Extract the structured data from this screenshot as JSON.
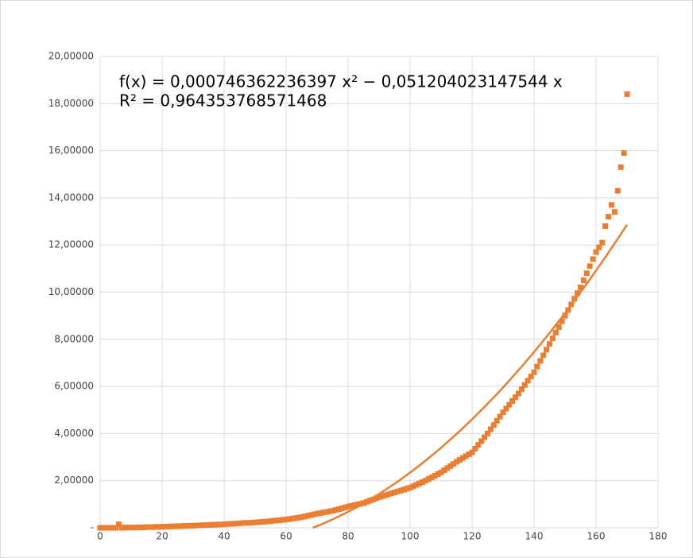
{
  "chart_data": {
    "type": "scatter",
    "x": [
      0,
      1,
      2,
      3,
      4,
      5,
      6,
      7,
      8,
      9,
      10,
      11,
      12,
      13,
      14,
      15,
      16,
      17,
      18,
      19,
      20,
      21,
      22,
      23,
      24,
      25,
      26,
      27,
      28,
      29,
      30,
      31,
      32,
      33,
      34,
      35,
      36,
      37,
      38,
      39,
      40,
      41,
      42,
      43,
      44,
      45,
      46,
      47,
      48,
      49,
      50,
      51,
      52,
      53,
      54,
      55,
      56,
      57,
      58,
      59,
      60,
      61,
      62,
      63,
      64,
      65,
      66,
      67,
      68,
      69,
      70,
      71,
      72,
      73,
      74,
      75,
      76,
      77,
      78,
      79,
      80,
      81,
      82,
      83,
      84,
      85,
      86,
      87,
      88,
      89,
      90,
      91,
      92,
      93,
      94,
      95,
      96,
      97,
      98,
      99,
      100,
      101,
      102,
      103,
      104,
      105,
      106,
      107,
      108,
      109,
      110,
      111,
      112,
      113,
      114,
      115,
      116,
      117,
      118,
      119,
      120,
      121,
      122,
      123,
      124,
      125,
      126,
      127,
      128,
      129,
      130,
      131,
      132,
      133,
      134,
      135,
      136,
      137,
      138,
      139,
      140,
      141,
      142,
      143,
      144,
      145,
      146,
      147,
      148,
      149,
      150,
      151,
      152,
      153,
      154,
      155,
      156,
      157,
      158,
      159,
      160,
      161,
      162,
      163,
      164,
      165,
      166,
      167,
      168,
      169,
      170
    ],
    "values": [
      0,
      0,
      0,
      0,
      0,
      0,
      0.15,
      0,
      0.01,
      0.01,
      0.01,
      0.01,
      0.02,
      0.02,
      0.02,
      0.03,
      0.03,
      0.03,
      0.04,
      0.04,
      0.04,
      0.05,
      0.05,
      0.06,
      0.06,
      0.07,
      0.07,
      0.08,
      0.08,
      0.09,
      0.09,
      0.1,
      0.1,
      0.11,
      0.11,
      0.12,
      0.13,
      0.13,
      0.14,
      0.14,
      0.15,
      0.16,
      0.17,
      0.17,
      0.18,
      0.19,
      0.2,
      0.21,
      0.21,
      0.22,
      0.23,
      0.24,
      0.25,
      0.26,
      0.27,
      0.28,
      0.3,
      0.31,
      0.32,
      0.34,
      0.35,
      0.37,
      0.39,
      0.41,
      0.43,
      0.45,
      0.48,
      0.51,
      0.54,
      0.57,
      0.6,
      0.62,
      0.65,
      0.67,
      0.7,
      0.72,
      0.76,
      0.79,
      0.83,
      0.86,
      0.9,
      0.93,
      0.96,
      0.99,
      1.02,
      1.05,
      1.1,
      1.15,
      1.2,
      1.25,
      1.3,
      1.34,
      1.38,
      1.42,
      1.46,
      1.5,
      1.54,
      1.58,
      1.62,
      1.66,
      1.7,
      1.76,
      1.82,
      1.88,
      1.94,
      2.0,
      2.07,
      2.14,
      2.21,
      2.28,
      2.35,
      2.44,
      2.53,
      2.62,
      2.71,
      2.8,
      2.88,
      2.96,
      3.04,
      3.12,
      3.2,
      3.36,
      3.52,
      3.68,
      3.84,
      4.0,
      4.18,
      4.36,
      4.54,
      4.72,
      4.9,
      5.06,
      5.22,
      5.38,
      5.54,
      5.7,
      5.88,
      6.06,
      6.24,
      6.42,
      6.6,
      6.84,
      7.08,
      7.32,
      7.56,
      7.8,
      8.04,
      8.28,
      8.52,
      8.76,
      9.0,
      9.24,
      9.48,
      9.72,
      9.96,
      10.2,
      10.5,
      10.8,
      11.1,
      11.4,
      11.7,
      11.9,
      12.1,
      12.8,
      13.2,
      13.7,
      13.4,
      14.3,
      15.3,
      15.9,
      18.4
    ],
    "color": "#ed7d31",
    "trendline": {
      "a": 0.000746362236397,
      "b": -0.051204023147544,
      "equation": "f(x) = 0,000746362236397 x² − 0,051204023147544 x",
      "r_squared": "R² = 0,964353768571468",
      "color": "#ed7d31"
    },
    "xlim": [
      0,
      180
    ],
    "xticks": [
      0,
      20,
      40,
      60,
      80,
      100,
      120,
      140,
      160,
      180
    ],
    "ylim": [
      0,
      20
    ],
    "yticks": [
      {
        "value": 0,
        "label": "-"
      },
      {
        "value": 2,
        "label": "2,00000"
      },
      {
        "value": 4,
        "label": "4,00000"
      },
      {
        "value": 6,
        "label": "6,00000"
      },
      {
        "value": 8,
        "label": "8,00000"
      },
      {
        "value": 10,
        "label": "10,00000"
      },
      {
        "value": 12,
        "label": "12,00000"
      },
      {
        "value": 14,
        "label": "14,00000"
      },
      {
        "value": 16,
        "label": "16,00000"
      },
      {
        "value": 18,
        "label": "18,00000"
      },
      {
        "value": 20,
        "label": "20,00000"
      }
    ],
    "grid": true
  }
}
